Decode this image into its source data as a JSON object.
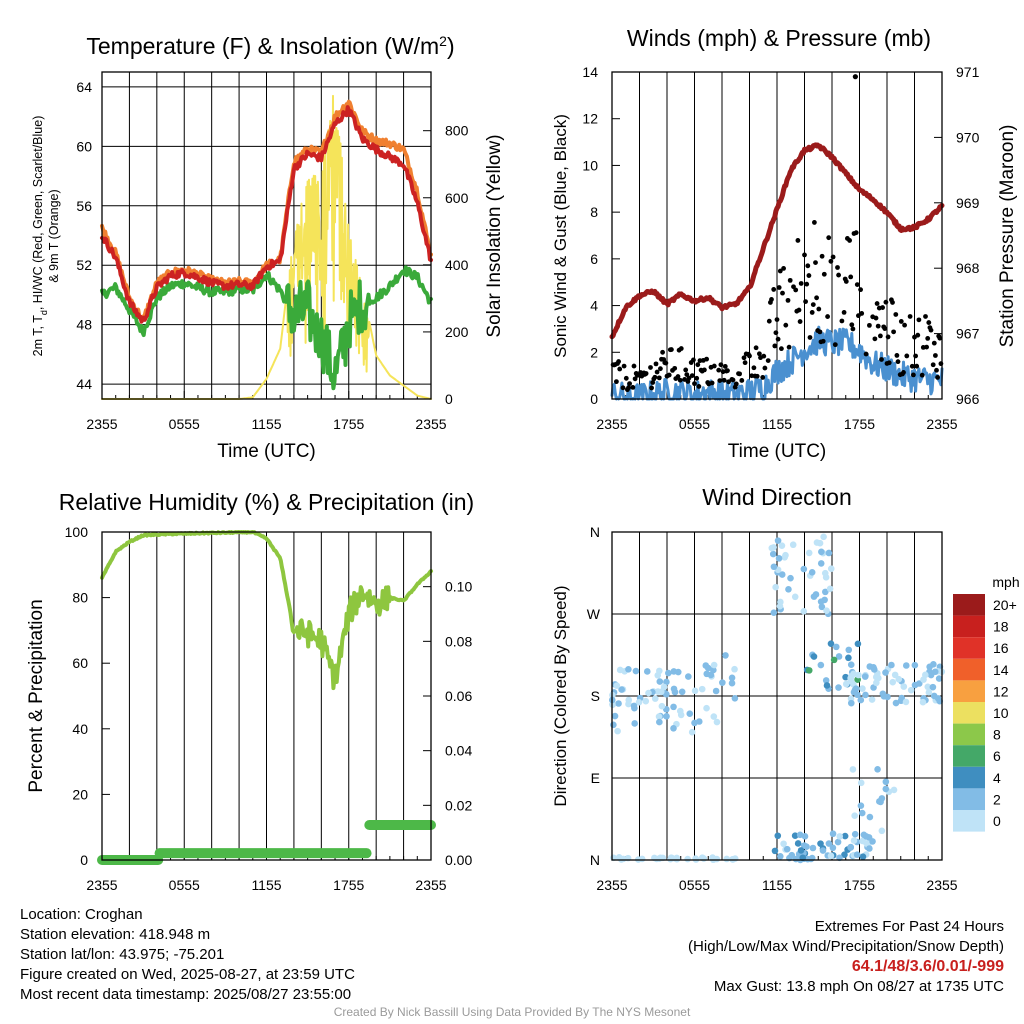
{
  "titles": {
    "temp": [
      "Temperature (F) & Insolation (W/m",
      "2",
      ")"
    ],
    "wind": "Winds (mph) & Pressure (mb)",
    "rh": "Relative Humidity (%) & Precipitation (in)",
    "dir": "Wind Direction"
  },
  "axis_labels": {
    "time": "Time (UTC)",
    "temp_left": [
      "2m T, T",
      "d",
      ", HI/WC (Red, Green, Scarlet/Blue)",
      "& 9m T (Orange)"
    ],
    "temp_right": "Solar Insolation (Yellow)",
    "wind_left": "Sonic Wind & Gust (Blue, Black)",
    "wind_right": "Station Pressure (Maroon)",
    "rh_left": "Percent & Precipitation",
    "dir_left": "Direction (Colored By Speed)",
    "colorbar_unit": "mph"
  },
  "time_ticks": [
    "2355",
    "0555",
    "1155",
    "1755",
    "2355"
  ],
  "colors": {
    "temp_red": "#cc2222",
    "temp_orange": "#f08030",
    "dewpoint_green": "#3aaa3a",
    "insolation_yellow": "#f5e45a",
    "wind_blue": "#4a90d0",
    "gust_black": "#000000",
    "pressure_maroon": "#9b1b1b",
    "rh_green": "#8ec63f",
    "precip_green": "#4db848"
  },
  "colorbar": {
    "labels": [
      "20+",
      "18",
      "16",
      "14",
      "12",
      "10",
      "8",
      "6",
      "4",
      "2",
      "0"
    ],
    "colors": [
      "#9b1b1b",
      "#c8201e",
      "#e03228",
      "#f0602a",
      "#f8a040",
      "#ece060",
      "#8cc84a",
      "#44a868",
      "#3f8ec0",
      "#82bce6",
      "#bfe3f7"
    ]
  },
  "info": {
    "location": "Location: Croghan",
    "elevation": "Station elevation: 418.948 m",
    "latlon": "Station lat/lon: 43.975; -75.201",
    "created": "Figure created on Wed, 2025-08-27, at 23:59 UTC",
    "recent": "Most recent data timestamp: 2025/08/27 23:55:00",
    "extremes_title": "Extremes For Past 24 Hours",
    "extremes_sub": "(High/Low/Max Wind/Precipitation/Snow Depth)",
    "extremes_values": "64.1/48/3.6/0.01/-999",
    "max_gust": "Max Gust: 13.8 mph On 08/27 at 1735 UTC",
    "credit": "Created By Nick Bassill Using Data Provided By The NYS Mesonet"
  },
  "chart_data": [
    {
      "type": "line",
      "title": "Temperature (F) & Insolation (W/m2)",
      "xlabel": "Time (UTC)",
      "ylabel": "2m T, Td, HI/WC (Red, Green, Scarlet/Blue) & 9m T (Orange)",
      "y2label": "Solar Insolation (Yellow)",
      "x_hours": [
        0,
        1,
        2,
        3,
        4,
        5,
        6,
        7,
        8,
        9,
        10,
        11,
        12,
        13,
        14,
        15,
        16,
        17,
        18,
        19,
        20,
        21,
        22,
        23,
        24
      ],
      "ylim": [
        43,
        65
      ],
      "y2lim": [
        0,
        975
      ],
      "yticks": [
        44,
        48,
        52,
        56,
        60,
        64
      ],
      "y2ticks": [
        0,
        200,
        400,
        600,
        800
      ],
      "grid": true,
      "series": [
        {
          "name": "2m T",
          "axis": "left",
          "values": [
            54,
            52.5,
            49.5,
            48.2,
            50.5,
            51.3,
            51.5,
            51.2,
            50.8,
            50.6,
            50.7,
            50.6,
            51.9,
            52.3,
            58.5,
            59.5,
            59.2,
            61.5,
            62.5,
            60.5,
            59.8,
            59.3,
            58.8,
            56.2,
            52.3
          ]
        },
        {
          "name": "9m T",
          "axis": "left",
          "values": [
            54.5,
            52.8,
            49.8,
            48.3,
            50.8,
            51.5,
            51.7,
            51.4,
            51,
            50.8,
            50.9,
            50.8,
            52,
            52.4,
            59,
            59.8,
            59.6,
            62,
            63,
            61,
            60.4,
            60.2,
            59.8,
            57,
            52.6
          ]
        },
        {
          "name": "Td",
          "axis": "left",
          "values": [
            50,
            50.5,
            49,
            47.5,
            49.8,
            50.6,
            50.8,
            50.5,
            50.2,
            50.2,
            50.4,
            50.3,
            51.4,
            50.3,
            48.5,
            49,
            47,
            44.5,
            48,
            49.5,
            49.8,
            50.6,
            51.7,
            51.2,
            49.5
          ]
        },
        {
          "name": "Solar Insolation",
          "axis": "right",
          "values": [
            0,
            0,
            0,
            0,
            0,
            0,
            0,
            0,
            0,
            0,
            0,
            5,
            60,
            150,
            500,
            650,
            700,
            940,
            500,
            330,
            130,
            70,
            40,
            10,
            0
          ]
        }
      ]
    },
    {
      "type": "line",
      "title": "Winds (mph) & Pressure (mb)",
      "xlabel": "Time (UTC)",
      "ylabel": "Sonic Wind & Gust (Blue, Black)",
      "y2label": "Station Pressure (Maroon)",
      "x_hours": [
        0,
        1,
        2,
        3,
        4,
        5,
        6,
        7,
        8,
        9,
        10,
        11,
        12,
        13,
        14,
        15,
        16,
        17,
        18,
        19,
        20,
        21,
        22,
        23,
        24
      ],
      "ylim": [
        0,
        14
      ],
      "y2lim": [
        966,
        971
      ],
      "yticks": [
        0,
        2,
        4,
        6,
        8,
        10,
        12,
        14
      ],
      "y2ticks": [
        966,
        967,
        968,
        969,
        970,
        971
      ],
      "grid": true,
      "series": [
        {
          "name": "Sonic Wind",
          "axis": "left",
          "values": [
            0.2,
            0.1,
            0.1,
            0.2,
            0.3,
            0.3,
            0.2,
            0.3,
            0.2,
            0.2,
            0.3,
            0.5,
            1.2,
            1.6,
            2.1,
            2.5,
            2.4,
            2.4,
            2.1,
            1.5,
            1.3,
            1,
            0.9,
            0.8,
            0.8
          ]
        },
        {
          "name": "Gust",
          "axis": "left",
          "values": [
            1,
            0.8,
            0.8,
            1,
            1.2,
            1.3,
            1,
            1,
            0.9,
            0.9,
            1.3,
            1.8,
            3,
            3.6,
            4.3,
            5,
            4.7,
            4.4,
            4.6,
            3,
            2.6,
            2,
            2,
            2.2,
            1.7
          ]
        },
        {
          "name": "Station Pressure",
          "axis": "right",
          "values": [
            966.95,
            967.4,
            967.58,
            967.65,
            967.45,
            967.6,
            967.5,
            967.55,
            967.4,
            967.45,
            967.7,
            968.3,
            968.9,
            969.5,
            969.8,
            969.88,
            969.7,
            969.45,
            969.2,
            969.05,
            968.85,
            968.6,
            968.62,
            968.75,
            968.95
          ]
        }
      ],
      "gust_points_max": 13.8
    },
    {
      "type": "line",
      "title": "Relative Humidity (%) & Precipitation (in)",
      "ylabel": "Percent & Precipitation",
      "x_hours": [
        0,
        1,
        2,
        3,
        4,
        5,
        6,
        7,
        8,
        9,
        10,
        11,
        12,
        13,
        14,
        15,
        16,
        17,
        18,
        19,
        20,
        21,
        22,
        23,
        24
      ],
      "ylim": [
        0,
        100
      ],
      "y2lim": [
        0,
        0.12
      ],
      "yticks": [
        0,
        20,
        40,
        60,
        80,
        100
      ],
      "y2ticks": [
        0.0,
        0.02,
        0.04,
        0.06,
        0.08,
        0.1
      ],
      "grid": true,
      "series": [
        {
          "name": "RH",
          "axis": "left",
          "values": [
            86,
            94,
            97,
            99,
            99.2,
            99.4,
            99.5,
            99.6,
            99.7,
            99.8,
            99.9,
            100,
            98,
            92,
            70,
            69,
            67,
            55,
            75,
            82,
            78,
            80,
            79,
            84,
            88
          ]
        },
        {
          "name": "Precipitation",
          "axis": "right",
          "values": [
            0,
            0,
            0,
            0,
            0.0025,
            0.0025,
            0.0025,
            0.0025,
            0.0025,
            0.0025,
            0.0025,
            0.0025,
            0.0025,
            0.0025,
            0.0025,
            0.0025,
            0.0025,
            0.0025,
            0.0025,
            0.0025,
            0.0128,
            0.0128,
            0.0128,
            0.0128,
            0.0128
          ]
        }
      ]
    },
    {
      "type": "scatter",
      "title": "Wind Direction",
      "ylabel": "Direction (Colored By Speed)",
      "x_hours": [
        0,
        24
      ],
      "ylim": [
        "N",
        "N"
      ],
      "yticks": [
        "N",
        "E",
        "S",
        "W",
        "N"
      ],
      "grid": true,
      "colorbar_unit": "mph",
      "colorbar_levels": [
        "0",
        "2",
        "4",
        "6",
        "8",
        "10",
        "12",
        "14",
        "16",
        "18",
        "20+"
      ]
    }
  ]
}
